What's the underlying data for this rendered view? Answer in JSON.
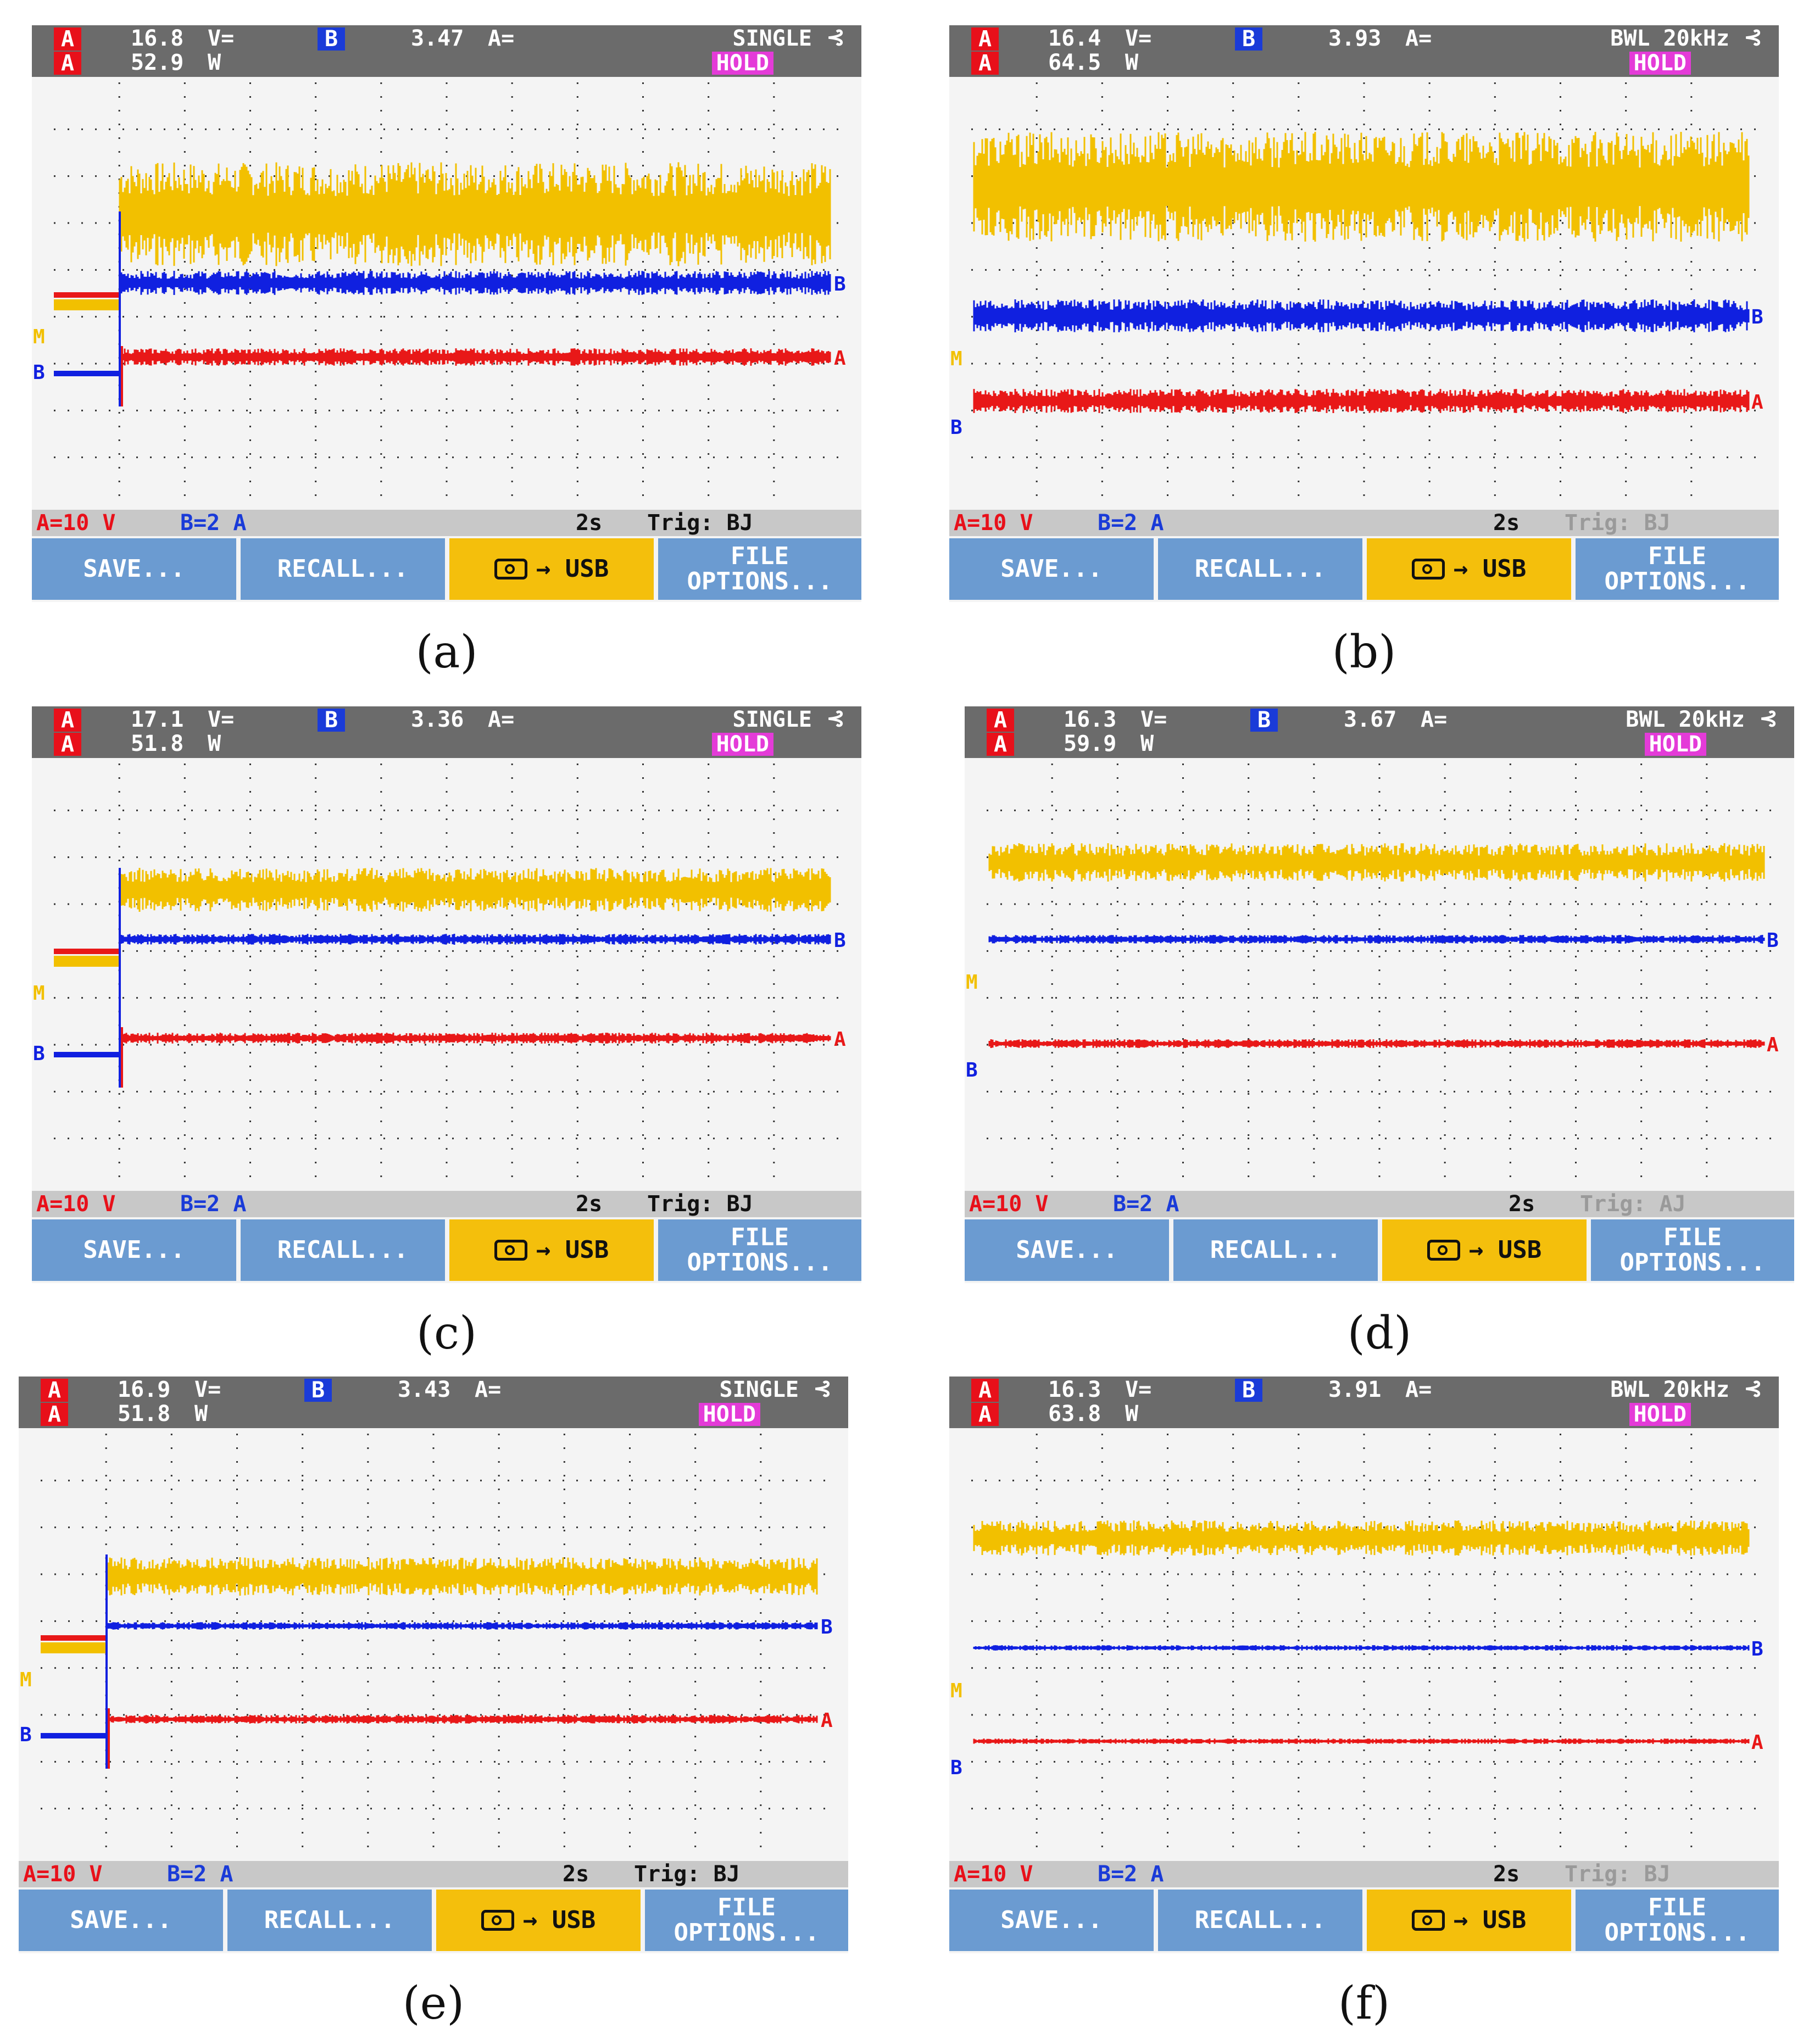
{
  "panels": [
    {
      "caption": "(a)",
      "ch_a_voltage": "16.8",
      "ch_a_voltage_unit": "V=",
      "ch_a_power": "52.9",
      "ch_a_power_unit": "W",
      "ch_b_value": "3.47",
      "ch_b_unit": "A=",
      "mode": "SINGLE",
      "hold": "HOLD",
      "ch_a_scale": "A=10 V",
      "ch_b_scale": "B=2 A",
      "timebase": "2s",
      "trigger": "Trig: BJ",
      "trigger_dim": false,
      "has_transient": true
    },
    {
      "caption": "(b)",
      "ch_a_voltage": "16.4",
      "ch_a_voltage_unit": "V=",
      "ch_a_power": "64.5",
      "ch_a_power_unit": "W",
      "ch_b_value": "3.93",
      "ch_b_unit": "A=",
      "mode": "BWL 20kHz",
      "hold": "HOLD",
      "ch_a_scale": "A=10 V",
      "ch_b_scale": "B=2 A",
      "timebase": "2s",
      "trigger": "Trig: BJ",
      "trigger_dim": true,
      "has_transient": false
    },
    {
      "caption": "(c)",
      "ch_a_voltage": "17.1",
      "ch_a_voltage_unit": "V=",
      "ch_a_power": "51.8",
      "ch_a_power_unit": "W",
      "ch_b_value": "3.36",
      "ch_b_unit": "A=",
      "mode": "SINGLE",
      "hold": "HOLD",
      "ch_a_scale": "A=10 V",
      "ch_b_scale": "B=2 A",
      "timebase": "2s",
      "trigger": "Trig: BJ",
      "trigger_dim": false,
      "has_transient": true
    },
    {
      "caption": "(d)",
      "ch_a_voltage": "16.3",
      "ch_a_voltage_unit": "V=",
      "ch_a_power": "59.9",
      "ch_a_power_unit": "W",
      "ch_b_value": "3.67",
      "ch_b_unit": "A=",
      "mode": "BWL 20kHz",
      "hold": "HOLD",
      "ch_a_scale": "A=10 V",
      "ch_b_scale": "B=2 A",
      "timebase": "2s",
      "trigger": "Trig: AJ",
      "trigger_dim": true,
      "has_transient": false
    },
    {
      "caption": "(e)",
      "ch_a_voltage": "16.9",
      "ch_a_voltage_unit": "V=",
      "ch_a_power": "51.8",
      "ch_a_power_unit": "W",
      "ch_b_value": "3.43",
      "ch_b_unit": "A=",
      "mode": "SINGLE",
      "hold": "HOLD",
      "ch_a_scale": "A=10 V",
      "ch_b_scale": "B=2 A",
      "timebase": "2s",
      "trigger": "Trig: BJ",
      "trigger_dim": false,
      "has_transient": true
    },
    {
      "caption": "(f)",
      "ch_a_voltage": "16.3",
      "ch_a_voltage_unit": "V=",
      "ch_a_power": "63.8",
      "ch_a_power_unit": "W",
      "ch_b_value": "3.91",
      "ch_b_unit": "A=",
      "mode": "BWL 20kHz",
      "hold": "HOLD",
      "ch_a_scale": "A=10 V",
      "ch_b_scale": "B=2 A",
      "timebase": "2s",
      "trigger": "Trig: BJ",
      "trigger_dim": true,
      "has_transient": false
    }
  ],
  "softkeys": {
    "save": "SAVE...",
    "recall": "RECALL...",
    "usb": "→ USB",
    "file_line1": "FILE",
    "file_line2": "OPTIONS..."
  },
  "channel_markers": {
    "a": "A",
    "b": "B",
    "m": "M"
  },
  "colors": {
    "trace_power": "#f2c000",
    "trace_current": "#1020e0",
    "trace_voltage": "#e81818",
    "grid": "#333333",
    "softkey": "#6b9bd1",
    "softkey_active": "#f4bf0c",
    "topbar": "#6b6b6b",
    "hold": "#e43bd8"
  }
}
